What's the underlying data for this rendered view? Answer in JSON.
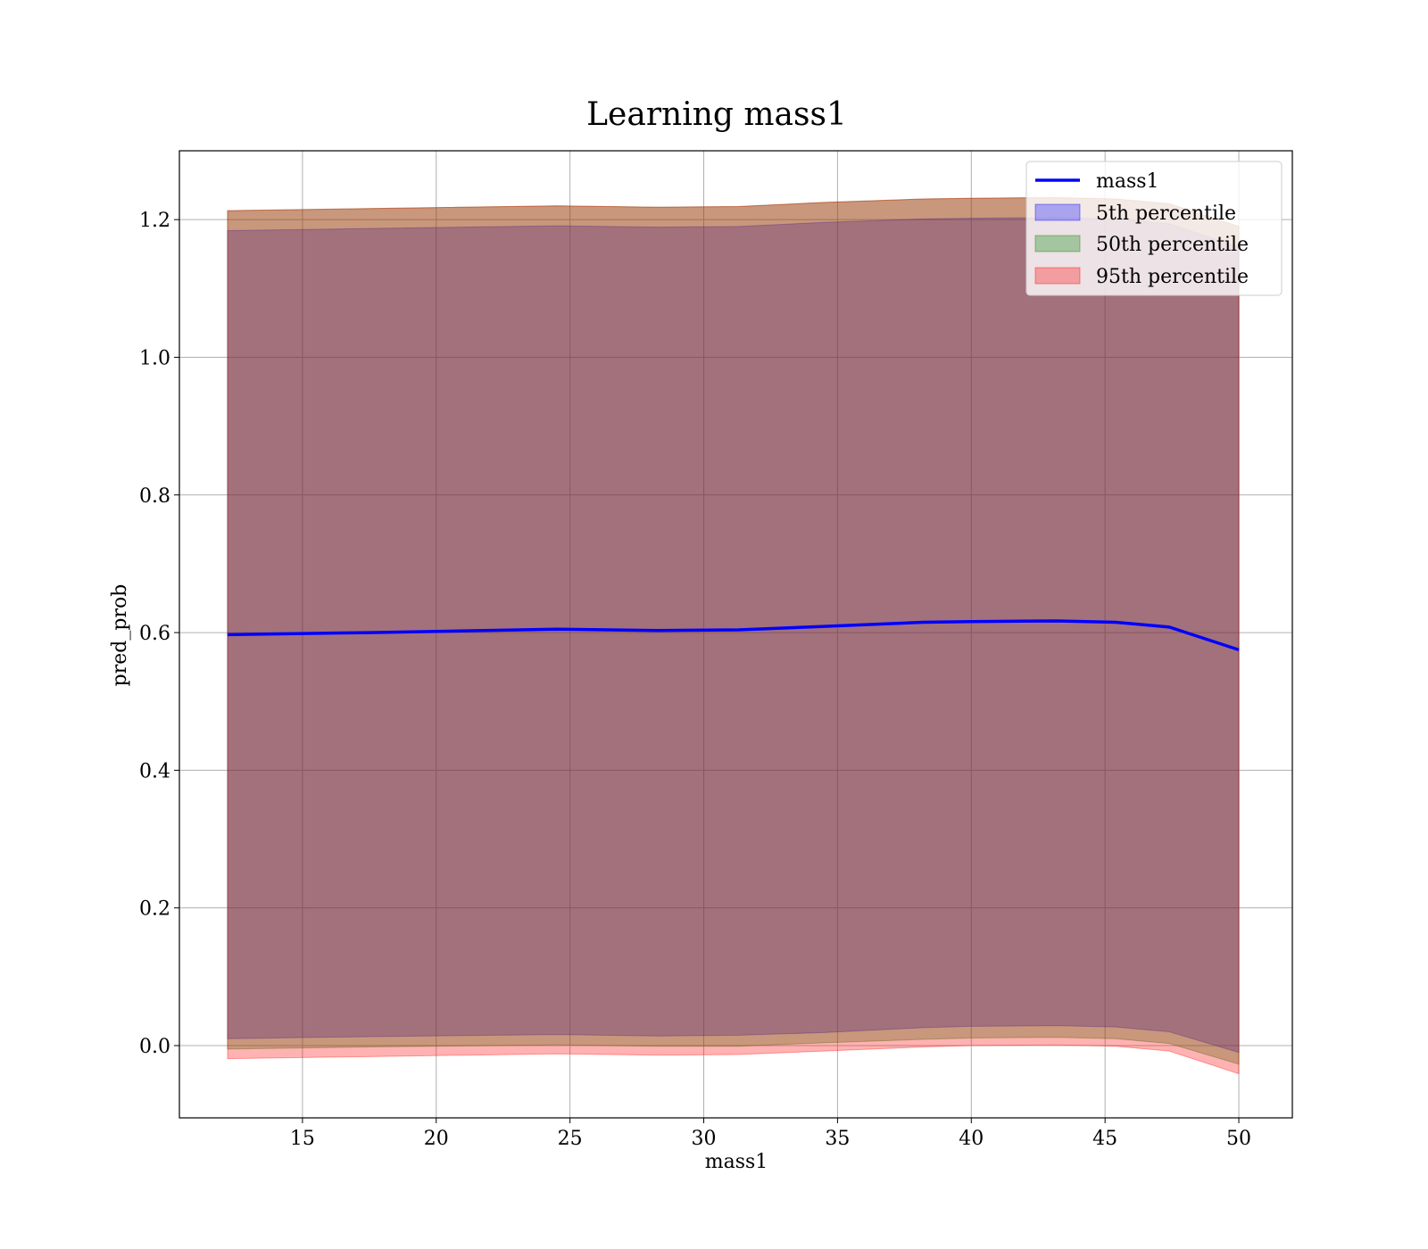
{
  "chart_data": {
    "type": "area",
    "title": "Learning mass1",
    "xlabel": "mass1",
    "ylabel": "pred_prob",
    "xlim": [
      10.4,
      52
    ],
    "ylim": [
      -0.105,
      1.3
    ],
    "x_ticks": [
      15,
      20,
      25,
      30,
      35,
      40,
      45,
      50
    ],
    "x_tick_labels": [
      "15",
      "20",
      "25",
      "30",
      "35",
      "40",
      "45",
      "50"
    ],
    "y_ticks": [
      0.0,
      0.2,
      0.4,
      0.6,
      0.8,
      1.0,
      1.2
    ],
    "y_tick_labels": [
      "0.0",
      "0.2",
      "0.4",
      "0.6",
      "0.8",
      "1.0",
      "1.2"
    ],
    "grid": true,
    "legend_position": "top-right",
    "x": [
      12.2,
      17.5,
      24.5,
      28.3,
      31.3,
      34.5,
      38.2,
      40.0,
      43.2,
      45.4,
      47.4,
      50.0
    ],
    "line": {
      "name": "mass1",
      "color": "#0000ff",
      "values": [
        0.597,
        0.6,
        0.605,
        0.603,
        0.604,
        0.609,
        0.615,
        0.616,
        0.617,
        0.615,
        0.608,
        0.575
      ]
    },
    "bands": [
      {
        "name": "5th percentile",
        "color": "#0000ff",
        "opacity": 0.3,
        "lower": [
          0.01,
          0.013,
          0.016,
          0.014,
          0.015,
          0.019,
          0.026,
          0.028,
          0.029,
          0.027,
          0.02,
          -0.01
        ],
        "upper": [
          1.184,
          1.187,
          1.191,
          1.189,
          1.19,
          1.196,
          1.201,
          1.202,
          1.203,
          1.201,
          1.194,
          1.16
        ]
      },
      {
        "name": "50th percentile",
        "color": "#008000",
        "opacity": 0.3,
        "lower": [
          -0.005,
          -0.002,
          0.001,
          -0.001,
          -0.001,
          0.004,
          0.009,
          0.011,
          0.012,
          0.01,
          0.003,
          -0.027
        ]
      },
      {
        "name": "95th percentile",
        "color": "#ff0000",
        "opacity": 0.3,
        "lower": [
          -0.019,
          -0.016,
          -0.012,
          -0.014,
          -0.013,
          -0.008,
          -0.002,
          0.0,
          0.001,
          -0.001,
          -0.008,
          -0.041
        ],
        "upper": [
          1.213,
          1.216,
          1.22,
          1.218,
          1.219,
          1.225,
          1.23,
          1.231,
          1.232,
          1.23,
          1.223,
          1.19
        ]
      }
    ]
  }
}
